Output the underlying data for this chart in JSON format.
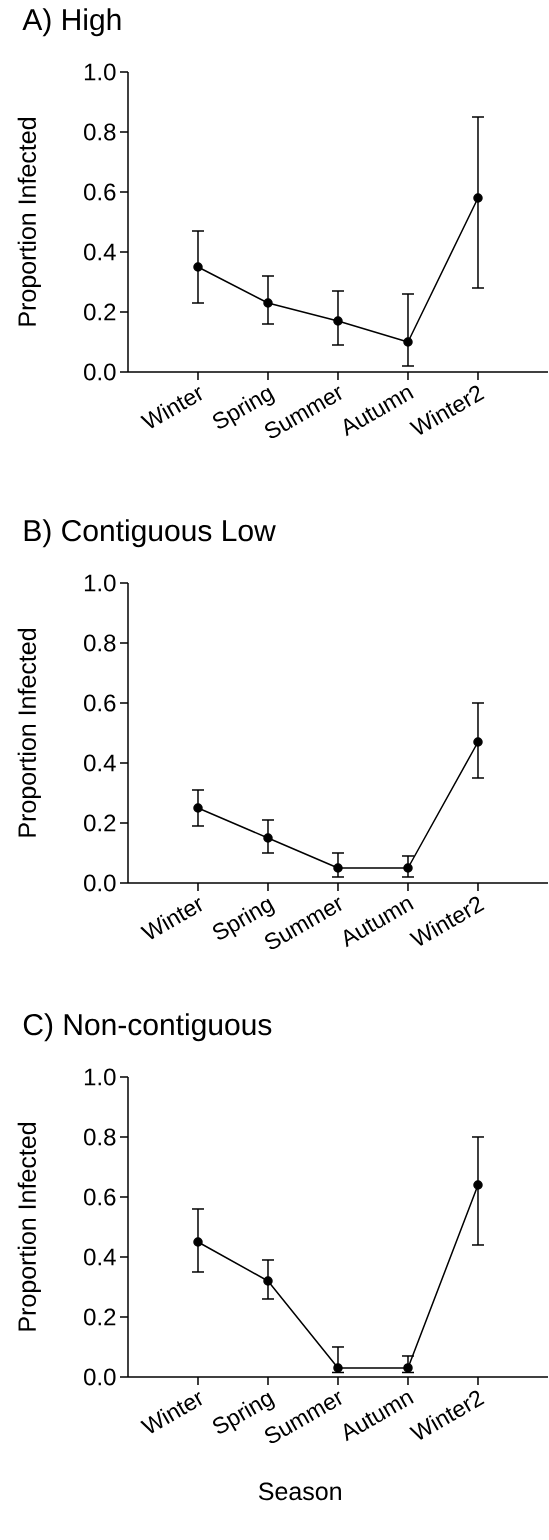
{
  "chart_data": [
    {
      "type": "line",
      "title": "A) High",
      "ylabel": "Proportion Infected",
      "categories": [
        "Winter",
        "Spring",
        "Summer",
        "Autumn",
        "Winter2"
      ],
      "values": [
        0.35,
        0.23,
        0.17,
        0.1,
        0.58
      ],
      "errors": [
        [
          0.23,
          0.47
        ],
        [
          0.16,
          0.32
        ],
        [
          0.09,
          0.27
        ],
        [
          0.02,
          0.26
        ],
        [
          0.28,
          0.85
        ]
      ],
      "color": "#000000",
      "marker": "circle",
      "line_style": "solid",
      "ylim": [
        0,
        1
      ],
      "yticks": [
        {
          "value": 0,
          "label": "0.0"
        },
        {
          "value": 0.2,
          "label": "0.2"
        },
        {
          "value": 0.4,
          "label": "0.4"
        },
        {
          "value": 0.6,
          "label": "0.6"
        },
        {
          "value": 0.8,
          "label": "0.8"
        },
        {
          "value": 1,
          "label": "1.0"
        }
      ]
    },
    {
      "type": "line",
      "title": "B) Contiguous Low",
      "ylabel": "Proportion Infected",
      "categories": [
        "Winter",
        "Spring",
        "Summer",
        "Autumn",
        "Winter2"
      ],
      "values": [
        0.25,
        0.15,
        0.05,
        0.05,
        0.47
      ],
      "errors": [
        [
          0.19,
          0.31
        ],
        [
          0.1,
          0.21
        ],
        [
          0.02,
          0.1
        ],
        [
          0.02,
          0.09
        ],
        [
          0.35,
          0.6
        ]
      ],
      "color": "#000000",
      "marker": "circle",
      "line_style": "solid",
      "ylim": [
        0,
        1
      ],
      "yticks": [
        {
          "value": 0,
          "label": "0.0"
        },
        {
          "value": 0.2,
          "label": "0.2"
        },
        {
          "value": 0.4,
          "label": "0.4"
        },
        {
          "value": 0.6,
          "label": "0.6"
        },
        {
          "value": 0.8,
          "label": "0.8"
        },
        {
          "value": 1,
          "label": "1.0"
        }
      ]
    },
    {
      "type": "line",
      "title": "C) Non-contiguous",
      "xlabel": "Season",
      "ylabel": "Proportion Infected",
      "categories": [
        "Winter",
        "Spring",
        "Summer",
        "Autumn",
        "Winter2"
      ],
      "values": [
        0.45,
        0.32,
        0.03,
        0.03,
        0.64
      ],
      "errors": [
        [
          0.35,
          0.56
        ],
        [
          0.26,
          0.39
        ],
        [
          0.015,
          0.1
        ],
        [
          0.015,
          0.07
        ],
        [
          0.44,
          0.8
        ]
      ],
      "color": "#000000",
      "marker": "circle",
      "line_style": "solid",
      "ylim": [
        0,
        1
      ],
      "yticks": [
        {
          "value": 0,
          "label": "0.0"
        },
        {
          "value": 0.2,
          "label": "0.2"
        },
        {
          "value": 0.4,
          "label": "0.4"
        },
        {
          "value": 0.6,
          "label": "0.6"
        },
        {
          "value": 0.8,
          "label": "0.8"
        },
        {
          "value": 1,
          "label": "1.0"
        }
      ]
    }
  ]
}
